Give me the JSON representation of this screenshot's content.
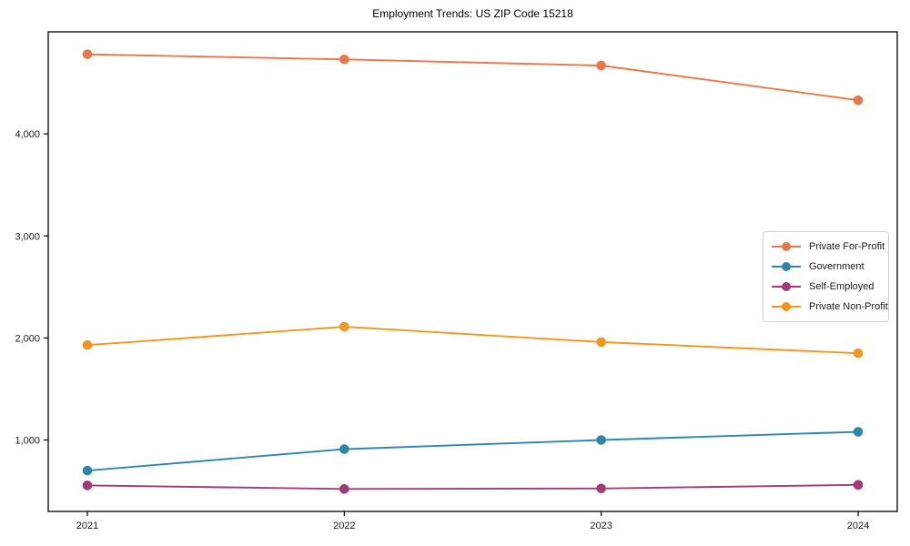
{
  "title": "Employment Trends: US ZIP Code 15218",
  "chart_data": {
    "type": "line",
    "title": "Employment Trends: US ZIP Code 15218",
    "x": [
      "2021",
      "2022",
      "2023",
      "2024"
    ],
    "series": [
      {
        "name": "Private For-Profit",
        "color": "#E8784A",
        "values": [
          4780,
          4730,
          4670,
          4330
        ]
      },
      {
        "name": "Government",
        "color": "#2E86AB",
        "values": [
          700,
          910,
          1000,
          1080
        ]
      },
      {
        "name": "Self-Employed",
        "color": "#A23B72",
        "values": [
          555,
          520,
          525,
          560
        ]
      },
      {
        "name": "Private Non-Profit",
        "color": "#F0981C",
        "values": [
          1930,
          2110,
          1960,
          1850
        ]
      }
    ],
    "ylim": [
      300,
      5000
    ],
    "yticks": [
      1000,
      2000,
      3000,
      4000
    ],
    "ytick_labels": [
      "1,000",
      "2,000",
      "3,000",
      "4,000"
    ],
    "xtick_labels": [
      "2021",
      "2022",
      "2023",
      "2024"
    ],
    "grid": false,
    "legend_position": "center-right",
    "marker": "circle",
    "axis_color": "#000000"
  }
}
